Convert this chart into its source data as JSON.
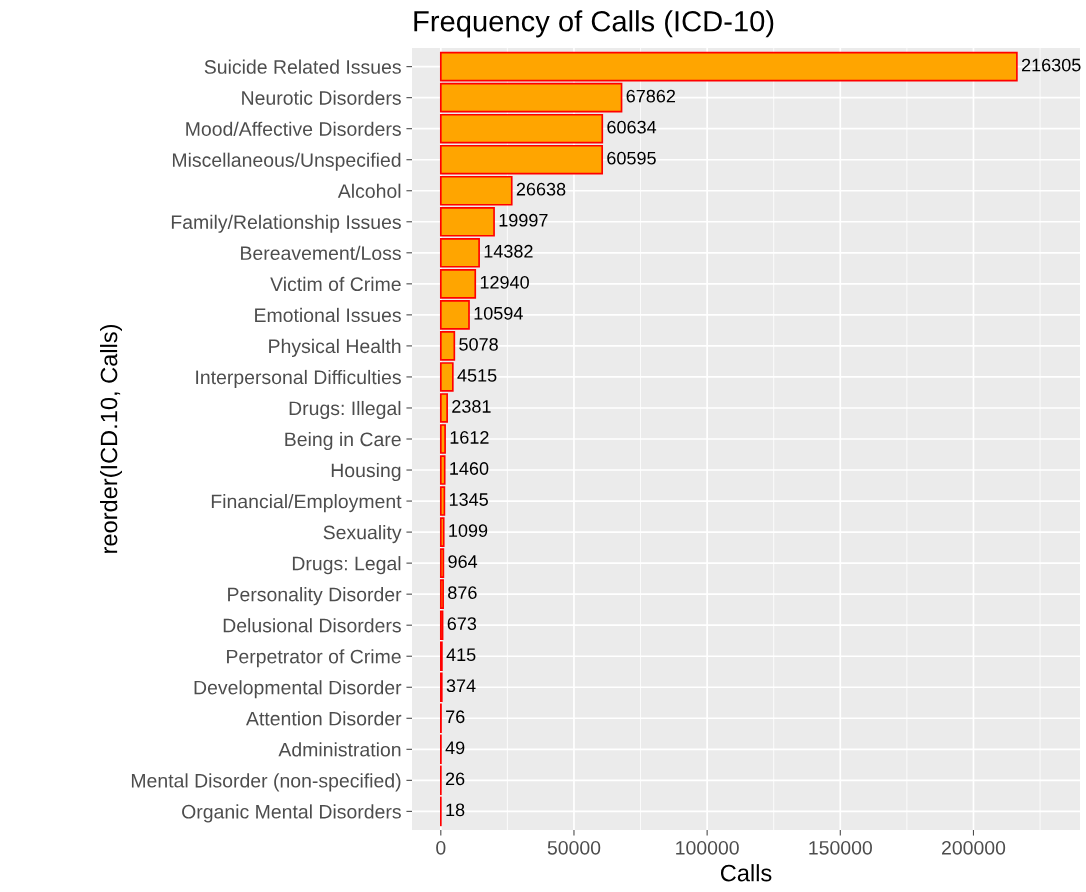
{
  "chart_data": {
    "type": "bar",
    "orientation": "horizontal",
    "title": "Frequency of Calls (ICD-10)",
    "xlabel": "Calls",
    "ylabel": "reorder(ICD.10, Calls)",
    "categories": [
      "Suicide Related Issues",
      "Neurotic Disorders",
      "Mood/Affective Disorders",
      "Miscellaneous/Unspecified",
      "Alcohol",
      "Family/Relationship Issues",
      "Bereavement/Loss",
      "Victim of Crime",
      "Emotional Issues",
      "Physical Health",
      "Interpersonal Difficulties",
      "Drugs: Illegal",
      "Being in Care",
      "Housing",
      "Financial/Employment",
      "Sexuality",
      "Drugs: Legal",
      "Personality Disorder",
      "Delusional Disorders",
      "Perpetrator of Crime",
      "Developmental Disorder",
      "Attention Disorder",
      "Administration",
      "Mental Disorder (non-specified)",
      "Organic Mental Disorders"
    ],
    "values": [
      216305,
      67862,
      60634,
      60595,
      26638,
      19997,
      14382,
      12940,
      10594,
      5078,
      4515,
      2381,
      1612,
      1460,
      1345,
      1099,
      964,
      876,
      673,
      415,
      374,
      76,
      49,
      26,
      18
    ],
    "color": "#ffa500",
    "data_labels": true,
    "grid": true,
    "xlim": [
      -10815,
      240000
    ],
    "xticks": [
      0,
      {
        "value": 25000,
        "label": null
      },
      50000,
      {
        "value": 75000,
        "label": null
      },
      100000,
      {
        "value": 125000,
        "label": null
      },
      150000,
      {
        "value": 175000,
        "label": null
      },
      200000,
      {
        "value": 225000,
        "label": null
      }
    ]
  }
}
